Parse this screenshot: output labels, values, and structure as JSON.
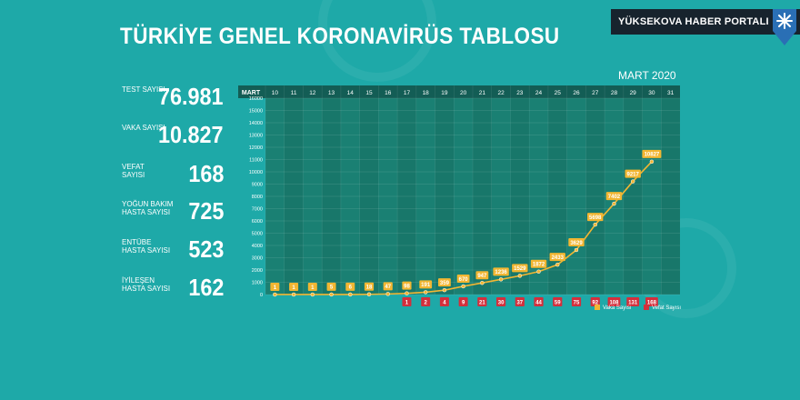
{
  "title": "TÜRKİYE GENEL KORONAVİRÜS TABLOSU",
  "brand": "YÜKSEKOVA HABER PORTALI",
  "stats": [
    {
      "label": "TEST SAYISI",
      "value": "76.981"
    },
    {
      "label": "VAKA SAYISI",
      "value": "10.827"
    },
    {
      "label": "VEFAT SAYISI",
      "value": "168"
    },
    {
      "label": "YOĞUN BAKIM HASTA SAYISI",
      "value": "725"
    },
    {
      "label": "ENTÜBE HASTA SAYISI",
      "value": "523"
    },
    {
      "label": "İYİLEŞEN HASTA SAYISI",
      "value": "162"
    }
  ],
  "period_label": "MART 2020",
  "colors": {
    "background": "#1ea9a8",
    "chart_bg": "#1a8073",
    "header_bg": "#135d55",
    "cases": "#f2b632",
    "deaths": "#d32f3c"
  },
  "chart_data": {
    "type": "line",
    "month_label": "MART",
    "categories": [
      "10",
      "11",
      "12",
      "13",
      "14",
      "15",
      "16",
      "17",
      "18",
      "19",
      "20",
      "21",
      "22",
      "23",
      "24",
      "25",
      "26",
      "27",
      "28",
      "29",
      "30",
      "31"
    ],
    "ylim": [
      0,
      16000
    ],
    "yticks": [
      0,
      1000,
      2000,
      3000,
      4000,
      5000,
      6000,
      7000,
      8000,
      9000,
      10000,
      11000,
      12000,
      13000,
      14000,
      15000,
      16000
    ],
    "series": [
      {
        "name": "Vaka Sayısı",
        "color": "#f2b632",
        "values": [
          1,
          1,
          1,
          5,
          6,
          18,
          47,
          98,
          191,
          359,
          670,
          947,
          1236,
          1529,
          1872,
          2433,
          3629,
          5698,
          7402,
          9217,
          10827,
          null
        ]
      },
      {
        "name": "Vefat Sayısı",
        "color": "#d32f3c",
        "values": [
          null,
          null,
          null,
          null,
          null,
          null,
          null,
          1,
          2,
          4,
          9,
          21,
          30,
          37,
          44,
          59,
          75,
          92,
          108,
          131,
          168,
          null
        ]
      }
    ],
    "legend": "bottom-right"
  }
}
